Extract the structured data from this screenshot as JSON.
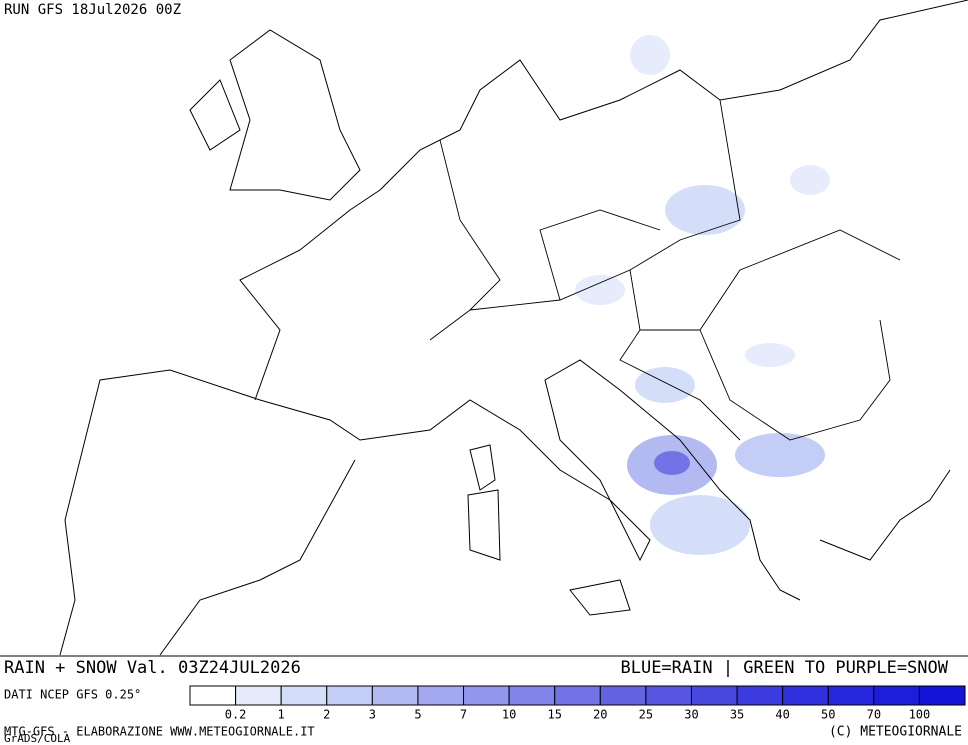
{
  "header": {
    "run": "RUN GFS 18Jul2026 00Z"
  },
  "title": {
    "left": "RAIN + SNOW Val. 03Z24JUL2026",
    "right": "BLUE=RAIN | GREEN TO PURPLE=SNOW"
  },
  "legend": {
    "source": "DATI NCEP GFS 0.25°",
    "labels": [
      "0.2",
      "1",
      "2",
      "3",
      "5",
      "7",
      "10",
      "15",
      "20",
      "25",
      "30",
      "35",
      "40",
      "50",
      "70",
      "100"
    ],
    "colors": [
      "#ffffff",
      "#e6ecfb",
      "#d5def8",
      "#c3cdf5",
      "#b3baf2",
      "#a3a8ef",
      "#9296ec",
      "#8284e9",
      "#7373e6",
      "#6464e3",
      "#5656e2",
      "#4848e0",
      "#3b3bdf",
      "#3030de",
      "#2626dd",
      "#1d1ddb",
      "#1414d8"
    ]
  },
  "footer": {
    "left": "MTG-GFS - ELABORAZIONE WWW.METEOGIORNALE.IT",
    "right": "(C) METEOGIORNALE",
    "credit": "GrADS/COLA"
  }
}
